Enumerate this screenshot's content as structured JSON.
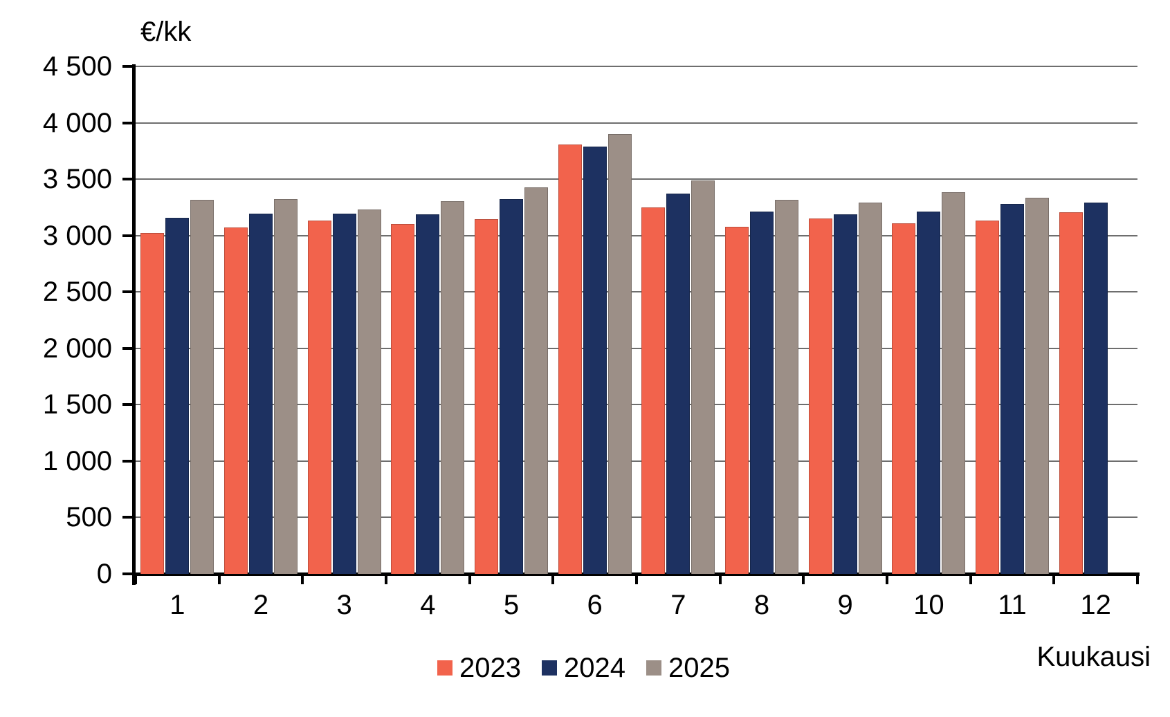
{
  "chart_data": {
    "type": "bar",
    "title": "",
    "y_axis_title": "€/kk",
    "xlabel": "Kuukausi",
    "ylabel": "€/kk",
    "categories": [
      "1",
      "2",
      "3",
      "4",
      "5",
      "6",
      "7",
      "8",
      "9",
      "10",
      "11",
      "12"
    ],
    "series": [
      {
        "name": "2023",
        "color": "#F2634C",
        "values": [
          3020,
          3070,
          3135,
          3105,
          3145,
          3810,
          3250,
          3080,
          3150,
          3110,
          3130,
          3205
        ]
      },
      {
        "name": "2024",
        "color": "#1D3161",
        "values": [
          3160,
          3195,
          3195,
          3190,
          3320,
          3790,
          3375,
          3215,
          3185,
          3215,
          3280,
          3290
        ]
      },
      {
        "name": "2025",
        "color": "#9C8F87",
        "values": [
          3315,
          3325,
          3230,
          3305,
          3430,
          3900,
          3490,
          3315,
          3290,
          3385,
          3335,
          null
        ]
      }
    ],
    "ylim": [
      0,
      4500
    ],
    "ytick_step": 500,
    "ytick_labels": [
      "0",
      "500",
      "1 000",
      "1 500",
      "2 000",
      "2 500",
      "3 000",
      "3 500",
      "4 000",
      "4 500"
    ],
    "grid": true,
    "legend_position": "bottom-center",
    "gridline_color": "#6E6E6E",
    "axis_color": "#000000"
  }
}
